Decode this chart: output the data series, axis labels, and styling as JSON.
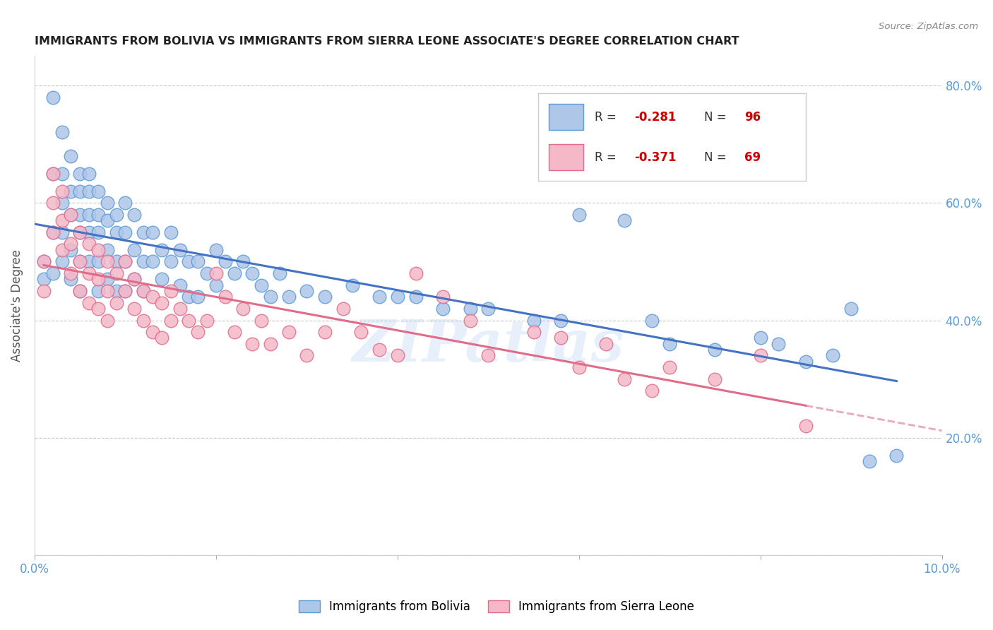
{
  "title": "IMMIGRANTS FROM BOLIVIA VS IMMIGRANTS FROM SIERRA LEONE ASSOCIATE'S DEGREE CORRELATION CHART",
  "source": "Source: ZipAtlas.com",
  "ylabel": "Associate's Degree",
  "xlim": [
    0.0,
    0.1
  ],
  "ylim": [
    0.0,
    0.85
  ],
  "bolivia_color": "#aec6e8",
  "bolivia_edge_color": "#5b9bd5",
  "sierra_leone_color": "#f4b8c8",
  "sierra_leone_edge_color": "#e06c8a",
  "bolivia_line_color": "#4472c4",
  "sierra_leone_line_color": "#e06c8a",
  "bolivia_R": -0.281,
  "bolivia_N": 96,
  "sierra_leone_R": -0.371,
  "sierra_leone_N": 69,
  "bolivia_x": [
    0.001,
    0.001,
    0.002,
    0.002,
    0.002,
    0.002,
    0.003,
    0.003,
    0.003,
    0.003,
    0.003,
    0.004,
    0.004,
    0.004,
    0.004,
    0.004,
    0.005,
    0.005,
    0.005,
    0.005,
    0.005,
    0.005,
    0.006,
    0.006,
    0.006,
    0.006,
    0.006,
    0.007,
    0.007,
    0.007,
    0.007,
    0.007,
    0.008,
    0.008,
    0.008,
    0.008,
    0.009,
    0.009,
    0.009,
    0.009,
    0.01,
    0.01,
    0.01,
    0.01,
    0.011,
    0.011,
    0.011,
    0.012,
    0.012,
    0.012,
    0.013,
    0.013,
    0.014,
    0.014,
    0.015,
    0.015,
    0.016,
    0.016,
    0.017,
    0.017,
    0.018,
    0.018,
    0.019,
    0.02,
    0.02,
    0.021,
    0.022,
    0.023,
    0.024,
    0.025,
    0.026,
    0.027,
    0.028,
    0.03,
    0.032,
    0.035,
    0.038,
    0.04,
    0.042,
    0.045,
    0.048,
    0.05,
    0.055,
    0.058,
    0.06,
    0.065,
    0.068,
    0.07,
    0.075,
    0.08,
    0.082,
    0.085,
    0.088,
    0.09,
    0.092,
    0.095
  ],
  "bolivia_y": [
    0.5,
    0.47,
    0.78,
    0.65,
    0.55,
    0.48,
    0.72,
    0.65,
    0.6,
    0.55,
    0.5,
    0.68,
    0.62,
    0.58,
    0.52,
    0.47,
    0.65,
    0.62,
    0.58,
    0.55,
    0.5,
    0.45,
    0.65,
    0.62,
    0.58,
    0.55,
    0.5,
    0.62,
    0.58,
    0.55,
    0.5,
    0.45,
    0.6,
    0.57,
    0.52,
    0.47,
    0.58,
    0.55,
    0.5,
    0.45,
    0.6,
    0.55,
    0.5,
    0.45,
    0.58,
    0.52,
    0.47,
    0.55,
    0.5,
    0.45,
    0.55,
    0.5,
    0.52,
    0.47,
    0.55,
    0.5,
    0.52,
    0.46,
    0.5,
    0.44,
    0.5,
    0.44,
    0.48,
    0.52,
    0.46,
    0.5,
    0.48,
    0.5,
    0.48,
    0.46,
    0.44,
    0.48,
    0.44,
    0.45,
    0.44,
    0.46,
    0.44,
    0.44,
    0.44,
    0.42,
    0.42,
    0.42,
    0.4,
    0.4,
    0.58,
    0.57,
    0.4,
    0.36,
    0.35,
    0.37,
    0.36,
    0.33,
    0.34,
    0.42,
    0.16,
    0.17
  ],
  "sierra_leone_x": [
    0.001,
    0.001,
    0.002,
    0.002,
    0.002,
    0.003,
    0.003,
    0.003,
    0.004,
    0.004,
    0.004,
    0.005,
    0.005,
    0.005,
    0.006,
    0.006,
    0.006,
    0.007,
    0.007,
    0.007,
    0.008,
    0.008,
    0.008,
    0.009,
    0.009,
    0.01,
    0.01,
    0.011,
    0.011,
    0.012,
    0.012,
    0.013,
    0.013,
    0.014,
    0.014,
    0.015,
    0.015,
    0.016,
    0.017,
    0.018,
    0.019,
    0.02,
    0.021,
    0.022,
    0.023,
    0.024,
    0.025,
    0.026,
    0.028,
    0.03,
    0.032,
    0.034,
    0.036,
    0.038,
    0.04,
    0.042,
    0.045,
    0.048,
    0.05,
    0.055,
    0.058,
    0.06,
    0.063,
    0.065,
    0.068,
    0.07,
    0.075,
    0.08,
    0.085
  ],
  "sierra_leone_y": [
    0.5,
    0.45,
    0.65,
    0.6,
    0.55,
    0.62,
    0.57,
    0.52,
    0.58,
    0.53,
    0.48,
    0.55,
    0.5,
    0.45,
    0.53,
    0.48,
    0.43,
    0.52,
    0.47,
    0.42,
    0.5,
    0.45,
    0.4,
    0.48,
    0.43,
    0.5,
    0.45,
    0.47,
    0.42,
    0.45,
    0.4,
    0.44,
    0.38,
    0.43,
    0.37,
    0.45,
    0.4,
    0.42,
    0.4,
    0.38,
    0.4,
    0.48,
    0.44,
    0.38,
    0.42,
    0.36,
    0.4,
    0.36,
    0.38,
    0.34,
    0.38,
    0.42,
    0.38,
    0.35,
    0.34,
    0.48,
    0.44,
    0.4,
    0.34,
    0.38,
    0.37,
    0.32,
    0.36,
    0.3,
    0.28,
    0.32,
    0.3,
    0.34,
    0.22
  ],
  "watermark": "ZIPatlas",
  "background_color": "#ffffff",
  "grid_color": "#c8c8c8",
  "right_ytick_color": "#5b9bd5",
  "tick_color": "#5b9bd5"
}
